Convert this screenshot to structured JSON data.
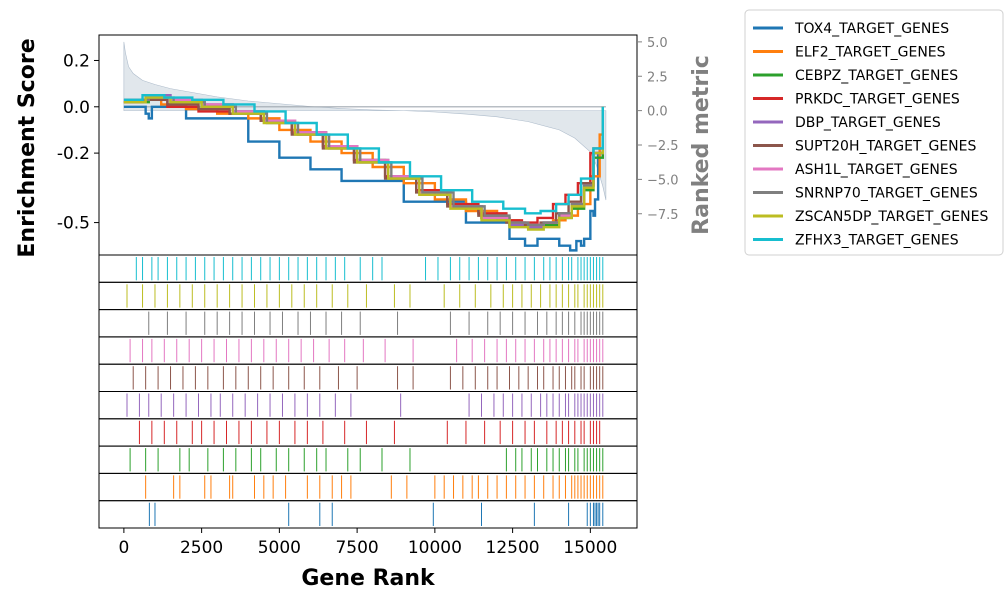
{
  "chart_data": {
    "type": "line",
    "xlabel": "Gene Rank",
    "ylabel_left": "Enrichment Score",
    "ylabel_right": "Ranked metric",
    "xlim": [
      -800,
      16500
    ],
    "ylim_left": [
      -0.64,
      0.31
    ],
    "ylim_right": [
      -10.5,
      5.5
    ],
    "x_ticks": [
      0,
      2500,
      5000,
      7500,
      10000,
      12500,
      15000
    ],
    "y_ticks_left": [
      0.2,
      0.0,
      -0.2,
      -0.5
    ],
    "y_tick_labels_left": [
      "0.2",
      "0.0",
      "-0.2",
      "-0.5"
    ],
    "y_ticks_right": [
      5.0,
      2.5,
      0.0,
      -2.5,
      -5.0,
      -7.5
    ],
    "y_tick_labels_right": [
      "5.0",
      "2.5",
      "0.0",
      "−2.5",
      "−5.0",
      "−7.5"
    ],
    "ranked_metric": {
      "x": [
        0,
        50,
        150,
        300,
        600,
        1000,
        1500,
        2000,
        3000,
        4000,
        5000,
        6000,
        7000,
        8000,
        9000,
        10000,
        11000,
        12000,
        13000,
        14000,
        14500,
        15000,
        15200,
        15400,
        15500
      ],
      "y": [
        5.0,
        4.2,
        3.2,
        2.7,
        2.2,
        1.9,
        1.6,
        1.4,
        1.0,
        0.7,
        0.5,
        0.3,
        0.15,
        0.05,
        0.0,
        -0.1,
        -0.25,
        -0.45,
        -0.8,
        -1.4,
        -2.0,
        -3.0,
        -4.0,
        -5.5,
        -6.5
      ],
      "color": "#c8d3dd"
    },
    "legend_position": "outside-right",
    "series": [
      {
        "name": "TOX4_TARGET_GENES",
        "color": "#1f77b4",
        "x": [
          0,
          700,
          800,
          900,
          2000,
          4000,
          5000,
          6000,
          7000,
          9000,
          11000,
          12400,
          12900,
          13300,
          14000,
          14350,
          14550,
          14700,
          14800,
          15000,
          15100,
          15150,
          15250,
          15400
        ],
        "y": [
          0.0,
          -0.03,
          -0.05,
          0.0,
          -0.05,
          -0.15,
          -0.22,
          -0.27,
          -0.32,
          -0.41,
          -0.5,
          -0.57,
          -0.6,
          -0.57,
          -0.6,
          -0.62,
          -0.58,
          -0.6,
          -0.57,
          -0.45,
          -0.47,
          -0.4,
          -0.2,
          0.0
        ],
        "ticks": [
          820,
          1000,
          5300,
          6300,
          6700,
          9950,
          11500,
          13200,
          14300,
          14900,
          15000,
          15100,
          15150,
          15200,
          15250,
          15300,
          15400
        ]
      },
      {
        "name": "ELF2_TARGET_GENES",
        "color": "#ff7f0e",
        "x": [
          0,
          500,
          1200,
          2000,
          3000,
          4000,
          5000,
          6000,
          7000,
          8000,
          9000,
          10000,
          11000,
          12000,
          12700,
          13300,
          13800,
          14200,
          14600,
          15000,
          15300,
          15400
        ],
        "y": [
          0.02,
          0.03,
          0.01,
          -0.01,
          -0.03,
          -0.05,
          -0.1,
          -0.15,
          -0.2,
          -0.26,
          -0.33,
          -0.4,
          -0.45,
          -0.49,
          -0.51,
          -0.51,
          -0.49,
          -0.47,
          -0.42,
          -0.3,
          -0.12,
          0.0
        ],
        "ticks": [
          700,
          1600,
          1800,
          2600,
          2800,
          3400,
          3500,
          4200,
          4500,
          4800,
          5200,
          5900,
          6300,
          6700,
          7000,
          7300,
          8600,
          9100,
          10000,
          10300,
          10600,
          10900,
          11200,
          11400,
          11700,
          12000,
          12300,
          12600,
          12900,
          13200,
          13500,
          13800,
          14000,
          14200,
          14400,
          14500,
          14600,
          14700,
          14800,
          14900,
          15000,
          15100,
          15200,
          15300,
          15400
        ]
      },
      {
        "name": "CEBPZ_TARGET_GENES",
        "color": "#2ca02c",
        "x": [
          0,
          800,
          1500,
          2500,
          3500,
          4500,
          5500,
          6500,
          7500,
          8500,
          9500,
          10500,
          11500,
          12400,
          13000,
          13500,
          14000,
          14400,
          14800,
          15100,
          15400
        ],
        "y": [
          0.02,
          0.04,
          0.02,
          0.0,
          -0.02,
          -0.06,
          -0.11,
          -0.17,
          -0.23,
          -0.3,
          -0.37,
          -0.43,
          -0.48,
          -0.51,
          -0.52,
          -0.51,
          -0.48,
          -0.44,
          -0.36,
          -0.22,
          0.0
        ],
        "ticks": [
          200,
          700,
          1100,
          1800,
          2100,
          2700,
          3200,
          3600,
          4100,
          4400,
          4900,
          5300,
          5800,
          6200,
          6500,
          7200,
          7600,
          8300,
          9200,
          12300,
          12600,
          12800,
          13100,
          13300,
          13600,
          13800,
          14000,
          14200,
          14300,
          14500,
          14600,
          14800,
          14900,
          15000,
          15100,
          15200,
          15300,
          15400
        ]
      },
      {
        "name": "PRKDC_TARGET_GENES",
        "color": "#d62728",
        "x": [
          0,
          600,
          1400,
          2400,
          3400,
          4400,
          5400,
          6400,
          7400,
          8400,
          9400,
          10400,
          11400,
          12300,
          12800,
          13300,
          13800,
          14200,
          14600,
          15000,
          15400
        ],
        "y": [
          0.02,
          0.03,
          0.0,
          -0.02,
          -0.03,
          -0.06,
          -0.11,
          -0.17,
          -0.23,
          -0.3,
          -0.36,
          -0.42,
          -0.46,
          -0.49,
          -0.5,
          -0.48,
          -0.42,
          -0.38,
          -0.33,
          -0.2,
          0.0
        ],
        "ticks": [
          500,
          900,
          1300,
          1700,
          2200,
          2500,
          2900,
          3300,
          3700,
          4100,
          4600,
          5000,
          5500,
          5900,
          6400,
          7100,
          7800,
          8700,
          10400,
          11000,
          11600,
          12100,
          12500,
          12900,
          13200,
          13600,
          13900,
          14100,
          14300,
          14500,
          14700,
          14800,
          15000,
          15100,
          15200,
          15300
        ]
      },
      {
        "name": "DBP_TARGET_GENES",
        "color": "#9467bd",
        "x": [
          0,
          700,
          1500,
          2500,
          3500,
          4500,
          5500,
          6500,
          7500,
          8500,
          9500,
          10500,
          11500,
          12400,
          13000,
          13500,
          14000,
          14400,
          14800,
          15100,
          15400
        ],
        "y": [
          0.03,
          0.05,
          0.03,
          0.01,
          -0.02,
          -0.06,
          -0.11,
          -0.17,
          -0.23,
          -0.3,
          -0.37,
          -0.43,
          -0.48,
          -0.51,
          -0.52,
          -0.5,
          -0.47,
          -0.42,
          -0.34,
          -0.2,
          0.0
        ],
        "ticks": [
          100,
          500,
          800,
          1200,
          1600,
          2000,
          2400,
          2800,
          3100,
          3500,
          3900,
          4300,
          4700,
          5100,
          5500,
          5900,
          6300,
          6800,
          7300,
          8900,
          11100,
          11500,
          11900,
          12200,
          12500,
          12800,
          13100,
          13400,
          13600,
          13800,
          14000,
          14200,
          14300,
          14500,
          14600,
          14700,
          14800,
          14900,
          15000,
          15100,
          15200,
          15300,
          15400
        ]
      },
      {
        "name": "SUPT20H_TARGET_GENES",
        "color": "#8c564b",
        "x": [
          0,
          600,
          1400,
          2400,
          3400,
          4400,
          5400,
          6400,
          7400,
          8400,
          9400,
          10400,
          11400,
          12300,
          12900,
          13400,
          13900,
          14300,
          14700,
          15100,
          15400
        ],
        "y": [
          0.02,
          0.03,
          0.01,
          -0.01,
          -0.03,
          -0.06,
          -0.12,
          -0.18,
          -0.24,
          -0.31,
          -0.37,
          -0.43,
          -0.47,
          -0.5,
          -0.51,
          -0.5,
          -0.46,
          -0.41,
          -0.33,
          -0.18,
          0.0
        ],
        "ticks": [
          300,
          700,
          1100,
          1500,
          1900,
          2300,
          2700,
          3200,
          3600,
          4000,
          4400,
          4800,
          5300,
          5800,
          6300,
          6900,
          7500,
          8800,
          9300,
          10500,
          10900,
          11300,
          11700,
          12000,
          12400,
          12700,
          13000,
          13300,
          13500,
          13800,
          14000,
          14200,
          14400,
          14500,
          14700,
          14800,
          15000,
          15100,
          15200,
          15300,
          15400
        ]
      },
      {
        "name": "ASH1L_TARGET_GENES",
        "color": "#e377c2",
        "x": [
          0,
          700,
          1500,
          2500,
          3500,
          4500,
          5500,
          6500,
          7500,
          8500,
          9500,
          10500,
          11500,
          12400,
          13000,
          13500,
          14000,
          14400,
          14800,
          15100,
          15400
        ],
        "y": [
          0.03,
          0.04,
          0.03,
          0.01,
          -0.02,
          -0.06,
          -0.11,
          -0.17,
          -0.23,
          -0.3,
          -0.37,
          -0.43,
          -0.48,
          -0.5,
          -0.51,
          -0.5,
          -0.47,
          -0.42,
          -0.34,
          -0.2,
          0.0
        ],
        "ticks": [
          200,
          600,
          900,
          1300,
          1700,
          2100,
          2500,
          2900,
          3300,
          3700,
          4100,
          4500,
          4900,
          5300,
          5700,
          6100,
          6600,
          7100,
          7700,
          8400,
          9300,
          10700,
          11200,
          11600,
          12000,
          12300,
          12600,
          12900,
          13200,
          13500,
          13700,
          13900,
          14100,
          14300,
          14500,
          14600,
          14800,
          14900,
          15000,
          15100,
          15200,
          15300,
          15400
        ]
      },
      {
        "name": "SNRNP70_TARGET_GENES",
        "color": "#7f7f7f",
        "x": [
          0,
          800,
          1600,
          2600,
          3600,
          4600,
          5600,
          6600,
          7600,
          8600,
          9600,
          10600,
          11600,
          12400,
          13000,
          13500,
          14000,
          14400,
          14800,
          15100,
          15400
        ],
        "y": [
          0.03,
          0.04,
          0.02,
          0.0,
          -0.03,
          -0.07,
          -0.12,
          -0.18,
          -0.24,
          -0.31,
          -0.37,
          -0.43,
          -0.47,
          -0.5,
          -0.51,
          -0.5,
          -0.46,
          -0.42,
          -0.34,
          -0.2,
          0.0
        ],
        "ticks": [
          800,
          1400,
          2000,
          2600,
          3000,
          3400,
          3800,
          4200,
          4700,
          5100,
          5600,
          6000,
          6500,
          7000,
          7600,
          8800,
          10500,
          11100,
          11700,
          12100,
          12500,
          12900,
          13300,
          13600,
          13900,
          14100,
          14300,
          14500,
          14700,
          14800,
          14900,
          15000,
          15100,
          15200,
          15300,
          15400
        ]
      },
      {
        "name": "ZSCAN5DP_TARGET_GENES",
        "color": "#bcbd22",
        "x": [
          0,
          700,
          1500,
          2500,
          3500,
          4500,
          5500,
          6500,
          7500,
          8500,
          9500,
          10500,
          11500,
          12400,
          13000,
          13500,
          14000,
          14400,
          14800,
          15100,
          15400
        ],
        "y": [
          0.02,
          0.04,
          0.02,
          0.0,
          -0.03,
          -0.07,
          -0.12,
          -0.18,
          -0.24,
          -0.31,
          -0.38,
          -0.44,
          -0.49,
          -0.52,
          -0.53,
          -0.52,
          -0.48,
          -0.43,
          -0.35,
          -0.2,
          0.0
        ],
        "ticks": [
          100,
          600,
          1000,
          1400,
          1800,
          2200,
          2600,
          3000,
          3400,
          3800,
          4200,
          4600,
          5000,
          5400,
          5800,
          6200,
          6700,
          7200,
          7800,
          8700,
          9200,
          10300,
          10800,
          11300,
          11800,
          12200,
          12500,
          12800,
          13100,
          13400,
          13700,
          13900,
          14100,
          14300,
          14500,
          14600,
          14800,
          14900,
          15000,
          15100,
          15200,
          15300,
          15400
        ]
      },
      {
        "name": "ZFHX3_TARGET_GENES",
        "color": "#17becf",
        "x": [
          0,
          600,
          1300,
          2200,
          3200,
          4200,
          5200,
          6200,
          7200,
          8200,
          9200,
          10200,
          11200,
          12200,
          12900,
          13400,
          13900,
          14300,
          14700,
          15100,
          15400
        ],
        "y": [
          0.03,
          0.05,
          0.04,
          0.03,
          0.01,
          -0.02,
          -0.07,
          -0.12,
          -0.18,
          -0.24,
          -0.3,
          -0.36,
          -0.41,
          -0.44,
          -0.46,
          -0.45,
          -0.42,
          -0.38,
          -0.31,
          -0.18,
          0.0
        ],
        "ticks": [
          400,
          600,
          900,
          1100,
          1400,
          1700,
          2000,
          2300,
          2600,
          2900,
          3200,
          3500,
          3800,
          4100,
          4400,
          4700,
          5000,
          5300,
          5600,
          5900,
          6200,
          6500,
          6800,
          7100,
          7600,
          8000,
          8300,
          9700,
          10100,
          10500,
          10800,
          11100,
          11400,
          11700,
          12000,
          12300,
          12600,
          12900,
          13200,
          13500,
          13700,
          13900,
          14100,
          14300,
          14400,
          14600,
          14700,
          14800,
          14900,
          15000,
          15100,
          15200,
          15300,
          15400
        ]
      }
    ]
  }
}
